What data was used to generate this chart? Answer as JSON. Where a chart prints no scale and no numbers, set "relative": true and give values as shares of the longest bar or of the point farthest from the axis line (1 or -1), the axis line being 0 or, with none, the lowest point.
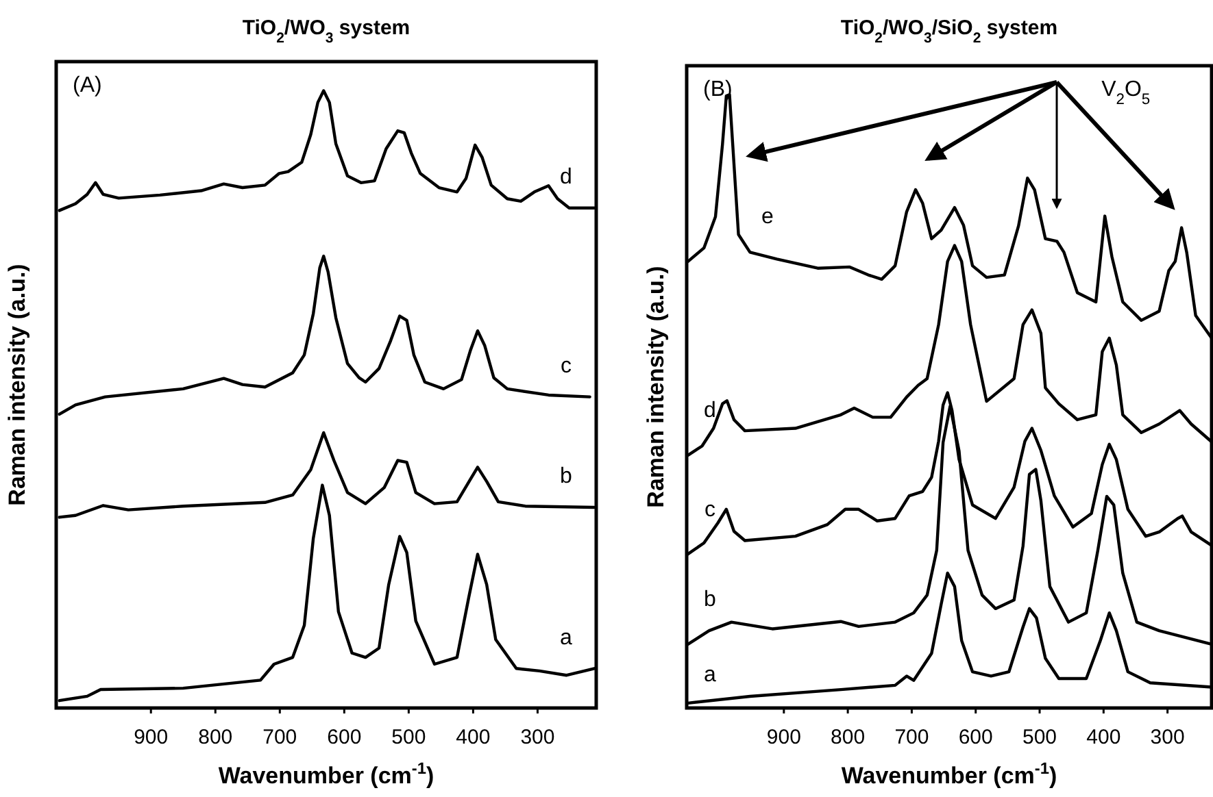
{
  "chart_data": [
    {
      "type": "line",
      "title": "TiO$_{2}$/WO$_{3}$ system",
      "xlabel": "Wavenumber (cm$^{-1}$)",
      "ylabel": "Raman intensity (a.u.)",
      "relative": true,
      "xlim": [
        1047,
        209
      ],
      "xticks": [
        900,
        800,
        700,
        600,
        500,
        400,
        300
      ],
      "marker": "none",
      "line_style": "solid",
      "tick_labels": "x",
      "annotations": [
        "(A)"
      ],
      "series": [
        {
          "name": "d",
          "color": "#000000",
          "x": [
            1042,
            1017,
            999,
            986,
            974,
            950,
            886,
            822,
            787,
            758,
            723,
            701,
            687,
            666,
            652,
            641,
            632,
            623,
            613,
            595,
            574,
            553,
            535,
            517,
            507,
            496,
            482,
            453,
            425,
            411,
            397,
            386,
            372,
            347,
            326,
            305,
            283,
            269,
            251,
            212
          ],
          "values": [
            0.806,
            0.817,
            0.832,
            0.851,
            0.832,
            0.826,
            0.831,
            0.838,
            0.849,
            0.843,
            0.847,
            0.866,
            0.869,
            0.884,
            0.929,
            0.981,
            1,
            0.981,
            0.914,
            0.862,
            0.851,
            0.854,
            0.906,
            0.935,
            0.932,
            0.899,
            0.866,
            0.843,
            0.836,
            0.858,
            0.912,
            0.892,
            0.847,
            0.825,
            0.821,
            0.836,
            0.846,
            0.825,
            0.81,
            0.81
          ]
        },
        {
          "name": "c",
          "color": "#000000",
          "x": [
            1042,
            1017,
            971,
            850,
            787,
            758,
            723,
            680,
            662,
            648,
            638,
            632,
            625,
            613,
            595,
            577,
            567,
            546,
            528,
            514,
            503,
            492,
            475,
            446,
            418,
            404,
            393,
            382,
            368,
            347,
            283,
            219
          ],
          "values": [
            0.476,
            0.491,
            0.504,
            0.517,
            0.534,
            0.524,
            0.52,
            0.543,
            0.572,
            0.639,
            0.713,
            0.732,
            0.706,
            0.632,
            0.558,
            0.535,
            0.528,
            0.55,
            0.595,
            0.635,
            0.628,
            0.572,
            0.528,
            0.517,
            0.532,
            0.58,
            0.611,
            0.587,
            0.535,
            0.517,
            0.507,
            0.504
          ]
        },
        {
          "name": "b",
          "color": "#000000",
          "x": [
            1042,
            1017,
            974,
            935,
            850,
            723,
            680,
            652,
            632,
            616,
            595,
            567,
            538,
            517,
            503,
            489,
            460,
            425,
            404,
            393,
            379,
            361,
            319,
            212
          ],
          "values": [
            0.309,
            0.312,
            0.328,
            0.321,
            0.327,
            0.333,
            0.345,
            0.386,
            0.446,
            0.401,
            0.349,
            0.331,
            0.357,
            0.401,
            0.398,
            0.349,
            0.331,
            0.334,
            0.371,
            0.39,
            0.367,
            0.334,
            0.327,
            0.325
          ]
        },
        {
          "name": "a",
          "color": "#000000",
          "x": [
            1042,
            999,
            978,
            850,
            730,
            709,
            680,
            662,
            648,
            634,
            623,
            609,
            588,
            567,
            546,
            531,
            514,
            503,
            489,
            460,
            425,
            407,
            393,
            379,
            365,
            333,
            297,
            255,
            212
          ],
          "values": [
            0.012,
            0.019,
            0.03,
            0.032,
            0.045,
            0.071,
            0.082,
            0.134,
            0.275,
            0.361,
            0.312,
            0.156,
            0.089,
            0.082,
            0.097,
            0.2,
            0.278,
            0.252,
            0.141,
            0.071,
            0.082,
            0.178,
            0.249,
            0.2,
            0.111,
            0.064,
            0.06,
            0.053,
            0.064
          ]
        }
      ]
    },
    {
      "type": "line",
      "title": "TiO$_{2}$/WO$_{3}$/SiO$_{2}$ system",
      "xlabel": "Wavenumber (cm$^{-1}$)",
      "ylabel": "Raman intensity (a.u.)",
      "relative": true,
      "xlim": [
        1052,
        231
      ],
      "xticks": [
        900,
        800,
        700,
        600,
        500,
        400,
        300
      ],
      "marker": "none",
      "line_style": "solid",
      "tick_labels": "x",
      "annotations": [
        "(B)",
        "V$_{2}$O$_{5}$"
      ],
      "series": [
        {
          "name": "e",
          "color": "#000000",
          "x": [
            1050,
            1025,
            1007,
            996,
            990,
            985,
            980,
            971,
            953,
            911,
            847,
            797,
            768,
            747,
            726,
            708,
            694,
            683,
            669,
            654,
            633,
            619,
            605,
            583,
            555,
            533,
            519,
            508,
            491,
            473,
            462,
            441,
            412,
            398,
            387,
            370,
            341,
            313,
            298,
            288,
            278,
            270,
            256,
            231
          ],
          "values": [
            0.728,
            0.75,
            0.801,
            0.919,
            0.998,
            1,
            0.919,
            0.772,
            0.743,
            0.732,
            0.717,
            0.719,
            0.706,
            0.699,
            0.721,
            0.809,
            0.845,
            0.823,
            0.765,
            0.779,
            0.816,
            0.787,
            0.721,
            0.702,
            0.706,
            0.786,
            0.864,
            0.845,
            0.765,
            0.761,
            0.743,
            0.677,
            0.662,
            0.802,
            0.736,
            0.662,
            0.632,
            0.647,
            0.713,
            0.728,
            0.783,
            0.743,
            0.64,
            0.603
          ]
        },
        {
          "name": "d",
          "color": "#000000",
          "x": [
            1050,
            1028,
            1010,
            996,
            989,
            978,
            961,
            882,
            811,
            790,
            761,
            733,
            708,
            690,
            676,
            658,
            644,
            633,
            622,
            608,
            583,
            540,
            526,
            512,
            498,
            491,
            470,
            441,
            412,
            402,
            391,
            380,
            370,
            341,
            313,
            281,
            263,
            231
          ],
          "values": [
            0.412,
            0.427,
            0.456,
            0.496,
            0.501,
            0.47,
            0.452,
            0.456,
            0.478,
            0.489,
            0.474,
            0.474,
            0.507,
            0.526,
            0.537,
            0.625,
            0.728,
            0.754,
            0.728,
            0.625,
            0.5,
            0.537,
            0.625,
            0.649,
            0.611,
            0.522,
            0.496,
            0.47,
            0.478,
            0.581,
            0.603,
            0.559,
            0.478,
            0.449,
            0.463,
            0.485,
            0.463,
            0.434
          ]
        },
        {
          "name": "c",
          "color": "#000000",
          "x": [
            1050,
            1025,
            1003,
            990,
            978,
            961,
            882,
            832,
            804,
            783,
            754,
            726,
            704,
            683,
            669,
            658,
            651,
            644,
            637,
            626,
            605,
            569,
            540,
            523,
            512,
            498,
            477,
            448,
            419,
            402,
            391,
            380,
            362,
            334,
            313,
            284,
            277,
            263,
            231
          ],
          "values": [
            0.251,
            0.269,
            0.302,
            0.324,
            0.288,
            0.273,
            0.28,
            0.299,
            0.324,
            0.324,
            0.305,
            0.309,
            0.346,
            0.353,
            0.376,
            0.435,
            0.494,
            0.514,
            0.485,
            0.405,
            0.331,
            0.309,
            0.36,
            0.435,
            0.456,
            0.42,
            0.346,
            0.295,
            0.317,
            0.397,
            0.43,
            0.405,
            0.324,
            0.28,
            0.287,
            0.309,
            0.313,
            0.287,
            0.265
          ]
        },
        {
          "name": "b",
          "color": "#000000",
          "x": [
            1050,
            1017,
            982,
            918,
            811,
            783,
            726,
            697,
            676,
            661,
            651,
            640,
            626,
            612,
            590,
            569,
            540,
            526,
            516,
            506,
            498,
            484,
            455,
            427,
            409,
            395,
            384,
            370,
            348,
            313,
            231
          ],
          "values": [
            0.104,
            0.126,
            0.14,
            0.129,
            0.141,
            0.133,
            0.14,
            0.155,
            0.184,
            0.257,
            0.433,
            0.492,
            0.419,
            0.257,
            0.184,
            0.162,
            0.176,
            0.264,
            0.381,
            0.389,
            0.338,
            0.198,
            0.14,
            0.155,
            0.257,
            0.345,
            0.331,
            0.22,
            0.14,
            0.126,
            0.104
          ]
        },
        {
          "name": "a",
          "color": "#000000",
          "x": [
            1050,
            953,
            811,
            726,
            708,
            697,
            669,
            654,
            644,
            633,
            622,
            605,
            576,
            548,
            526,
            516,
            505,
            491,
            470,
            427,
            405,
            391,
            380,
            362,
            327,
            231
          ],
          "values": [
            0.008,
            0.019,
            0.03,
            0.037,
            0.052,
            0.045,
            0.089,
            0.169,
            0.22,
            0.198,
            0.11,
            0.059,
            0.052,
            0.059,
            0.132,
            0.162,
            0.147,
            0.081,
            0.048,
            0.048,
            0.11,
            0.155,
            0.126,
            0.059,
            0.041,
            0.034
          ]
        }
      ]
    }
  ]
}
